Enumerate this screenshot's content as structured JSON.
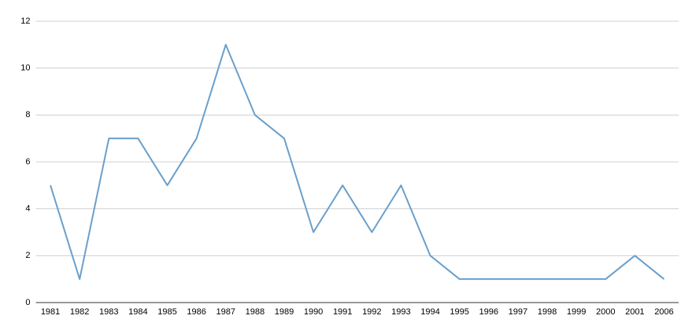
{
  "chart_data": {
    "type": "line",
    "categories": [
      "1981",
      "1982",
      "1983",
      "1984",
      "1985",
      "1986",
      "1987",
      "1988",
      "1989",
      "1990",
      "1991",
      "1992",
      "1993",
      "1994",
      "1995",
      "1996",
      "1997",
      "1998",
      "1999",
      "2000",
      "2001",
      "2006"
    ],
    "values": [
      5,
      1,
      7,
      7,
      5,
      7,
      11,
      8,
      7,
      3,
      5,
      3,
      5,
      2,
      1,
      1,
      1,
      1,
      1,
      1,
      2,
      1
    ],
    "color": "#6a9fcb",
    "ylim": [
      0,
      12
    ],
    "yticks": [
      0,
      2,
      4,
      6,
      8,
      10,
      12
    ],
    "grid": true
  }
}
